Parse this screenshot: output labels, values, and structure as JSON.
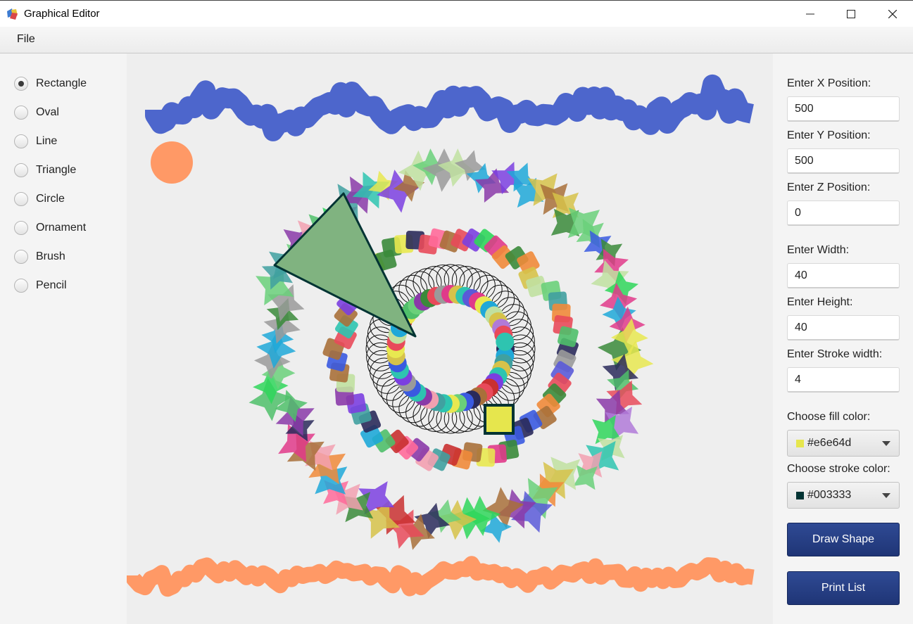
{
  "window": {
    "title": "Graphical Editor"
  },
  "menu": {
    "items": [
      "File"
    ]
  },
  "tools": {
    "selected": "Rectangle",
    "options": [
      "Rectangle",
      "Oval",
      "Line",
      "Triangle",
      "Circle",
      "Ornament",
      "Brush",
      "Pencil"
    ]
  },
  "form": {
    "x_label": "Enter X Position:",
    "x_value": "500",
    "y_label": "Enter Y Position:",
    "y_value": "500",
    "z_label": "Enter Z Position:",
    "z_value": "0",
    "width_label": "Enter Width:",
    "width_value": "40",
    "height_label": "Enter Height:",
    "height_value": "40",
    "stroke_label": "Enter Stroke width:",
    "stroke_value": "4",
    "fill_label": "Choose fill color:",
    "fill_value": "#e6e64d",
    "stroke_color_label": "Choose stroke color:",
    "stroke_color_value": "#003333",
    "draw_button": "Draw Shape",
    "print_button": "Print List"
  },
  "colors": {
    "button_bg": "#243d82",
    "brush_blue": "#4d66cc",
    "brush_orange": "#ff9966",
    "triangle_fill": "#80b380",
    "triangle_stroke": "#003333"
  }
}
